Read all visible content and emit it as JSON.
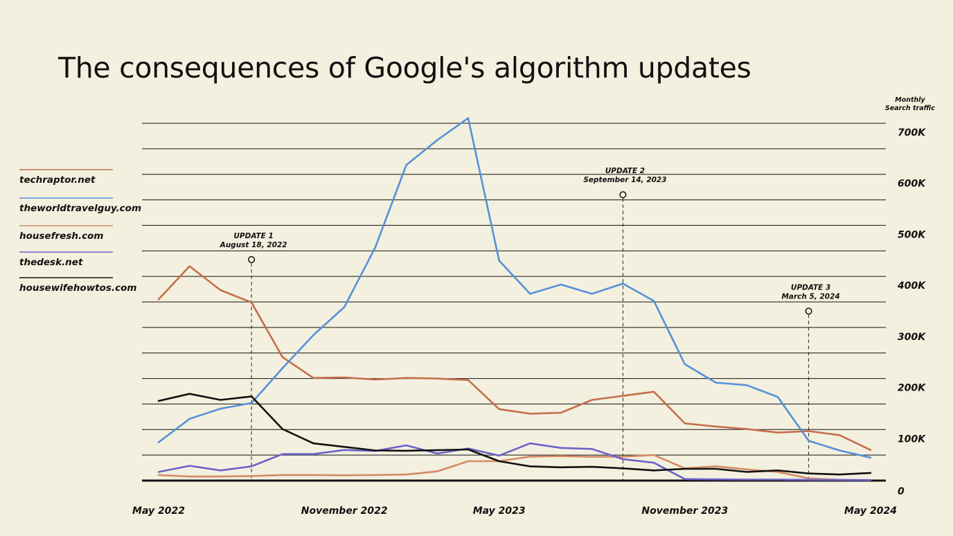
{
  "title": "The consequences of Google's algorithm updates",
  "chart_data": {
    "type": "line",
    "title": "The consequences of Google's algorithm updates",
    "ylabel_lines": [
      "Monthly",
      "Search traffic"
    ],
    "ylim": [
      0,
      700000
    ],
    "y_ticks": [
      0,
      100000,
      200000,
      300000,
      400000,
      500000,
      600000,
      700000
    ],
    "y_tick_labels": [
      "0",
      "100K",
      "200K",
      "300K",
      "400K",
      "500K",
      "600K",
      "700K"
    ],
    "y_gridlines": [
      0,
      50000,
      100000,
      150000,
      200000,
      250000,
      300000,
      350000,
      400000,
      450000,
      500000,
      550000,
      600000,
      650000,
      700000
    ],
    "x_range": [
      0,
      23
    ],
    "x_ticks": [
      0,
      6,
      11,
      17,
      23
    ],
    "x_tick_labels": [
      "May 2022",
      "November 2022",
      "May 2023",
      "November 2023",
      "May 2024"
    ],
    "series": [
      {
        "name": "techraptor.net",
        "color": "#c46e4a",
        "x": [
          0,
          1,
          2,
          3,
          4,
          5,
          6,
          7,
          8,
          9,
          10,
          11,
          12,
          13,
          14,
          15,
          16,
          17,
          18,
          19,
          20,
          21,
          22,
          23
        ],
        "values": [
          355000,
          420000,
          373000,
          349000,
          242000,
          201000,
          202000,
          198000,
          201000,
          200000,
          197000,
          140000,
          131000,
          133000,
          158000,
          166000,
          174000,
          112000,
          106000,
          101000,
          94000,
          97000,
          89000,
          60000
        ]
      },
      {
        "name": "theworldtravelguy.com",
        "color": "#5590d8",
        "x": [
          0,
          1,
          2,
          3,
          4,
          5,
          6,
          7,
          8,
          9,
          10,
          11,
          12,
          13,
          14,
          15,
          16,
          17,
          18,
          19,
          20,
          21,
          22,
          23
        ],
        "values": [
          75000,
          121000,
          141000,
          152000,
          220000,
          285000,
          340000,
          457000,
          618000,
          667000,
          710000,
          431000,
          366000,
          384000,
          366000,
          386000,
          352000,
          228000,
          192000,
          187000,
          164000,
          78000,
          59000,
          45000
        ]
      },
      {
        "name": "housefresh.com",
        "color": "#d48a66",
        "x": [
          0,
          1,
          2,
          3,
          4,
          5,
          6,
          7,
          8,
          9,
          10,
          11,
          12,
          13,
          14,
          15,
          16,
          17,
          18,
          19,
          20,
          21,
          22,
          23
        ],
        "values": [
          11000,
          8000,
          8000,
          9000,
          11000,
          11000,
          10500,
          11000,
          12000,
          18000,
          38000,
          38000,
          47000,
          48000,
          46500,
          47000,
          50000,
          24000,
          28000,
          22000,
          17000,
          4500,
          1500,
          1000
        ]
      },
      {
        "name": "thedesk.net",
        "color": "#6b62c8",
        "x": [
          0,
          1,
          2,
          3,
          4,
          5,
          6,
          7,
          8,
          9,
          10,
          11,
          12,
          13,
          14,
          15,
          16,
          17,
          18,
          19,
          20,
          21,
          22,
          23
        ],
        "values": [
          17000,
          29000,
          20000,
          28000,
          52000,
          52000,
          60000,
          58000,
          69000,
          53000,
          63000,
          49000,
          73000,
          64000,
          62000,
          42000,
          35000,
          3000,
          2500,
          2000,
          2000,
          1500,
          1200,
          1000
        ]
      },
      {
        "name": "housewifehowtos.com",
        "color": "#111111",
        "x": [
          0,
          1,
          2,
          3,
          4,
          5,
          6,
          7,
          8,
          9,
          10,
          11,
          12,
          13,
          14,
          15,
          16,
          17,
          18,
          19,
          20,
          21,
          22,
          23
        ],
        "values": [
          156000,
          170000,
          158000,
          165000,
          101000,
          73000,
          66000,
          59000,
          58500,
          59500,
          61000,
          38000,
          28000,
          26000,
          27000,
          24000,
          20000,
          23000,
          23000,
          17000,
          20000,
          14000,
          12000,
          15000
        ]
      }
    ],
    "annotations": [
      {
        "title": "UPDATE 1",
        "date": "August 18, 2022",
        "x": 3.0,
        "y": 433000
      },
      {
        "title": "UPDATE 2",
        "date": "September 14, 2023",
        "x": 15.0,
        "y": 560000
      },
      {
        "title": "UPDATE 3",
        "date": "March 5, 2024",
        "x": 21.0,
        "y": 332000
      }
    ]
  }
}
